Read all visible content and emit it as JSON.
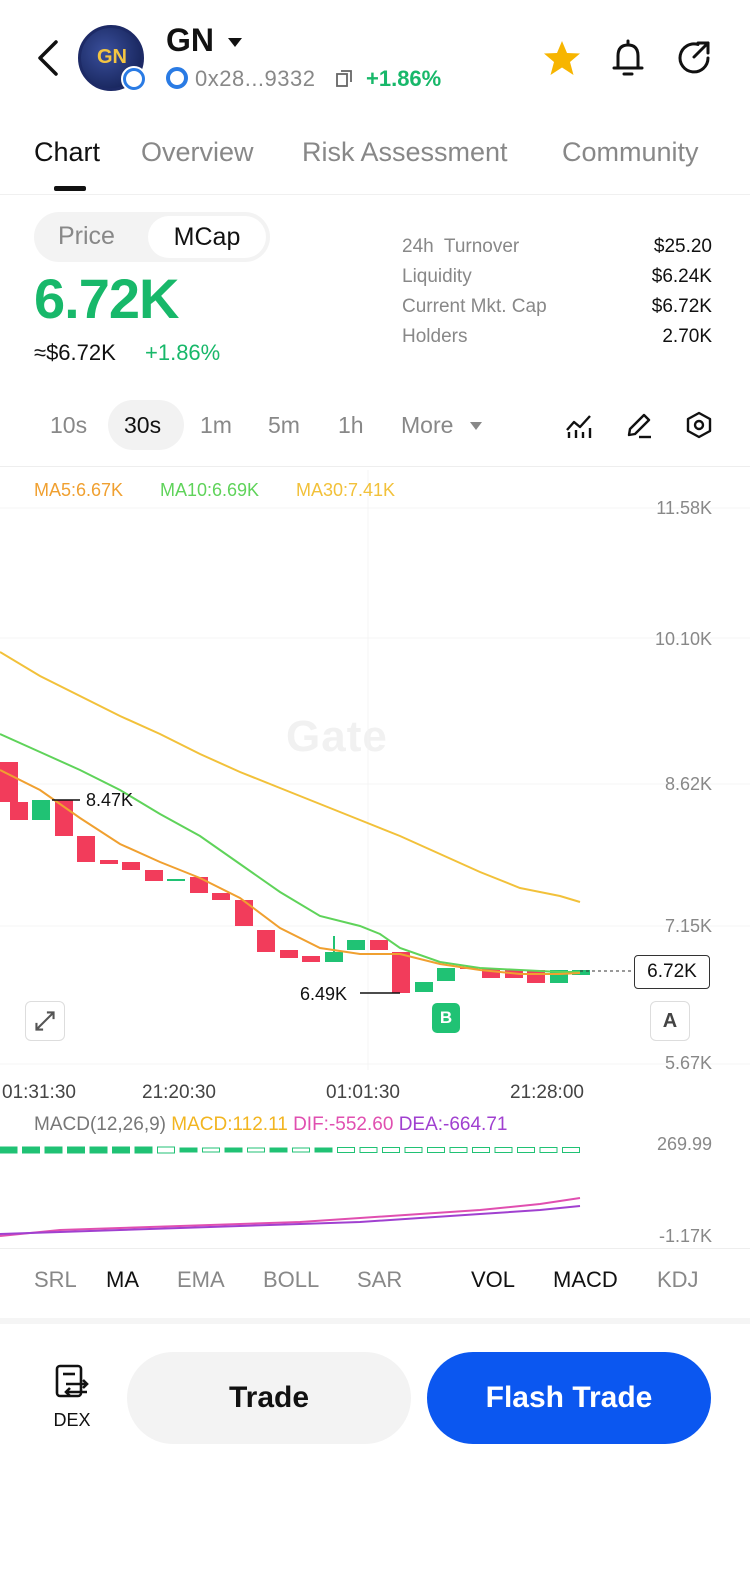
{
  "header": {
    "token_name": "GN",
    "logo_text": "GN",
    "address": "0x28...9332",
    "change": "+1.86%"
  },
  "tabs": [
    {
      "label": "Chart",
      "active": true
    },
    {
      "label": "Overview",
      "active": false
    },
    {
      "label": "Risk Assessment",
      "active": false
    },
    {
      "label": "Community",
      "active": false
    }
  ],
  "price_panel": {
    "toggle_price": "Price",
    "toggle_mcap": "MCap",
    "value": "6.72K",
    "usd_value": "≈$6.72K",
    "change": "+1.86%"
  },
  "stats": [
    {
      "label": "24h  Turnover",
      "value": "$25.20"
    },
    {
      "label": "Liquidity",
      "value": "$6.24K"
    },
    {
      "label": "Current Mkt. Cap",
      "value": "$6.72K"
    },
    {
      "label": "Holders",
      "value": "2.70K"
    }
  ],
  "intervals": {
    "items": [
      "10s",
      "30s",
      "1m",
      "5m",
      "1h"
    ],
    "active": "30s",
    "more": "More"
  },
  "chart": {
    "ma_legend": {
      "ma5": "MA5:6.67K",
      "ma10": "MA10:6.69K",
      "ma30": "MA30:7.41K"
    },
    "y_labels": [
      "11.58K",
      "10.10K",
      "8.62K",
      "7.15K",
      "5.67K"
    ],
    "x_labels": [
      "01:31:30",
      "21:20:30",
      "01:01:30",
      "21:28:00"
    ],
    "current_price": "6.72K",
    "high_label": "8.47K",
    "low_label": "6.49K",
    "b_marker": "B",
    "a_button": "A",
    "watermark": "Gate",
    "colors": {
      "up": "#20c274",
      "down": "#f23c5b",
      "ma5": "#f0a030",
      "ma10": "#5fd35a",
      "ma30": "#f2c13a"
    }
  },
  "macd": {
    "name": "MACD(12,26,9)",
    "macd": "MACD:112.11",
    "dif": "DIF:-552.60",
    "dea": "DEA:-664.71",
    "y_top": "269.99",
    "y_bottom": "-1.17K"
  },
  "indicators": {
    "main": [
      "SRL",
      "MA",
      "EMA",
      "BOLL",
      "SAR"
    ],
    "sub": [
      "VOL",
      "MACD",
      "KDJ"
    ],
    "active": [
      "MA",
      "VOL",
      "MACD"
    ]
  },
  "bottom": {
    "dex_label": "DEX",
    "trade": "Trade",
    "flash_trade": "Flash Trade"
  }
}
